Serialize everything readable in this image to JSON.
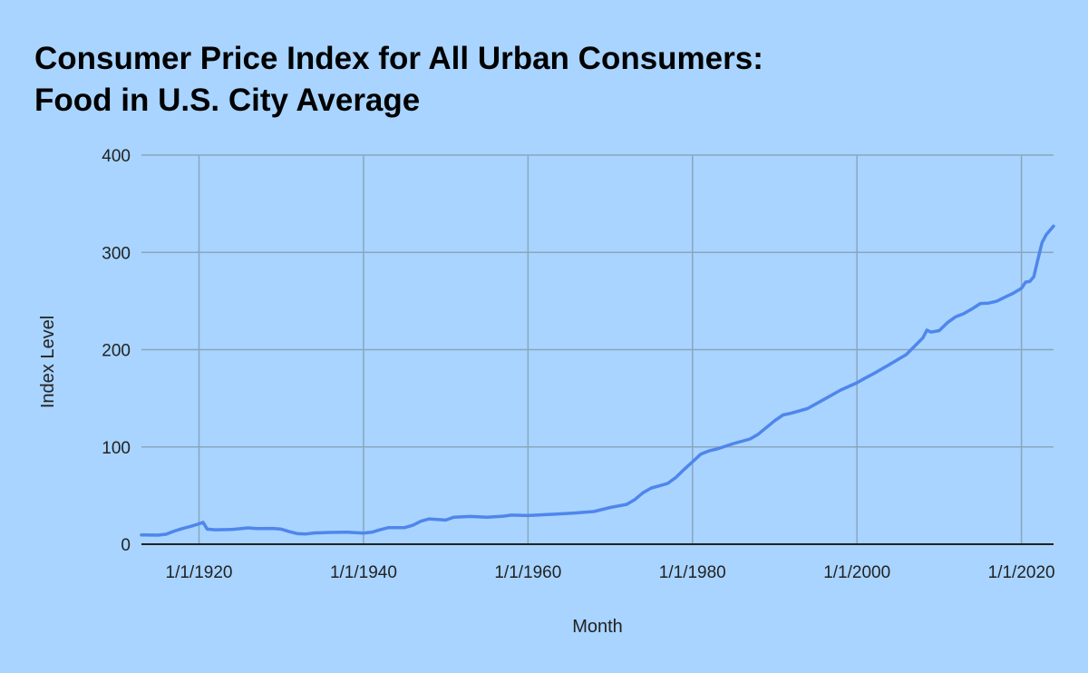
{
  "colors": {
    "background": "#a8d4ff",
    "grid": "#8aa6bd",
    "series": "#4f86ec",
    "axis": "#222222"
  },
  "chart_data": {
    "type": "line",
    "title_lines": [
      "Consumer Price Index for All Urban Consumers:",
      "Food in U.S. City Average"
    ],
    "xlabel": "Month",
    "ylabel": "Index Level",
    "ylim": [
      0,
      400
    ],
    "xlim": [
      1913,
      2023.9
    ],
    "y_ticks": [
      0,
      100,
      200,
      300,
      400
    ],
    "x_ticks": [
      {
        "year": 1920,
        "label": "1/1/1920"
      },
      {
        "year": 1940,
        "label": "1/1/1940"
      },
      {
        "year": 1960,
        "label": "1/1/1960"
      },
      {
        "year": 1980,
        "label": "1/1/1980"
      },
      {
        "year": 2000,
        "label": "1/1/2000"
      },
      {
        "year": 2020,
        "label": "1/1/2020"
      }
    ],
    "grid": true,
    "legend": "none",
    "series": [
      {
        "x": [
          1913,
          1915,
          1916,
          1917,
          1918,
          1919,
          1920,
          1920.5,
          1921,
          1922,
          1924,
          1926,
          1927,
          1929,
          1930,
          1931,
          1932,
          1933,
          1934,
          1936,
          1938,
          1940,
          1941,
          1942,
          1943,
          1945,
          1946,
          1947,
          1948,
          1950,
          1951,
          1953,
          1955,
          1957,
          1958,
          1960,
          1963,
          1966,
          1968,
          1970,
          1972,
          1973,
          1974,
          1975,
          1976,
          1977,
          1978,
          1979,
          1980,
          1981,
          1982,
          1983,
          1985,
          1987,
          1988,
          1990,
          1991,
          1992,
          1994,
          1996,
          1998,
          2000,
          2001,
          2002,
          2004,
          2006,
          2008,
          2008.5,
          2009,
          2010,
          2011,
          2012,
          2013,
          2014,
          2015,
          2016,
          2017,
          2018,
          2019,
          2020,
          2020.5,
          2021,
          2021.5,
          2022,
          2022.5,
          2023,
          2023.9
        ],
        "y": [
          9.5,
          9.3,
          10.3,
          13.5,
          16.1,
          18.4,
          21.0,
          22.5,
          15.5,
          14.8,
          15.2,
          16.8,
          16.0,
          16.2,
          15.5,
          12.9,
          10.8,
          10.5,
          11.6,
          12.1,
          12.4,
          11.4,
          12.3,
          14.8,
          17.0,
          17.1,
          19.5,
          23.7,
          26.0,
          24.8,
          27.8,
          28.5,
          27.8,
          28.8,
          29.9,
          29.5,
          30.8,
          32.3,
          33.6,
          37.8,
          40.9,
          46.0,
          53.0,
          57.8,
          60.0,
          62.6,
          68.7,
          77.0,
          84.7,
          92.5,
          95.9,
          97.9,
          103.5,
          108.2,
          113.1,
          127.0,
          132.9,
          134.6,
          139.5,
          148.9,
          158.4,
          166.0,
          170.8,
          175.2,
          185.0,
          195.0,
          212.0,
          220.0,
          218.0,
          219.6,
          227.8,
          233.8,
          237.0,
          242.0,
          247.5,
          247.8,
          249.8,
          254.0,
          258.0,
          263.0,
          269.5,
          270.0,
          275.0,
          293.0,
          310.0,
          318.0,
          327.0
        ]
      }
    ]
  }
}
